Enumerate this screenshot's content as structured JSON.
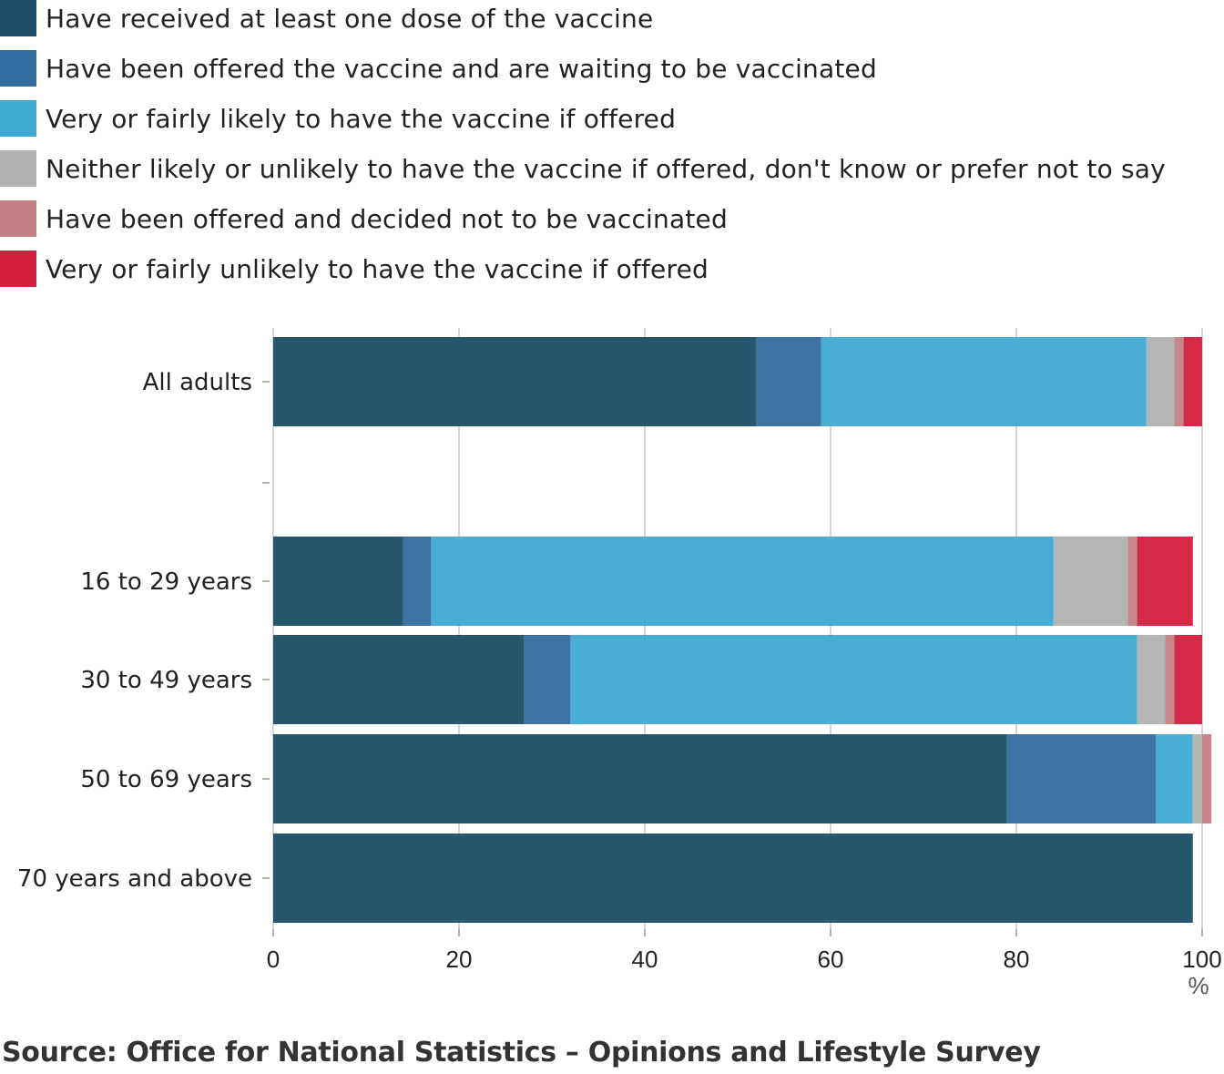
{
  "chart_data": {
    "type": "bar",
    "orientation": "horizontal",
    "stacked": true,
    "categories": [
      "All adults",
      "16 to 29 years",
      "30 to 49 years",
      "50 to 69 years",
      "70 years and above"
    ],
    "series": [
      {
        "name": "Have received at least one dose of the vaccine",
        "color": "#1b4e66",
        "values": [
          52,
          14,
          27,
          79,
          99
        ]
      },
      {
        "name": "Have been offered the vaccine and are waiting to be vaccinated",
        "color": "#346d9f",
        "values": [
          7,
          3,
          5,
          16,
          0
        ]
      },
      {
        "name": "Very or fairly likely to have the vaccine if offered",
        "color": "#40a9d2",
        "values": [
          35,
          67,
          61,
          4,
          0
        ]
      },
      {
        "name": "Neither likely or unlikely to have the vaccine if offered, don't know or prefer not to say",
        "color": "#b1b1b1",
        "values": [
          3,
          8,
          3,
          1,
          0
        ]
      },
      {
        "name": "Have been offered and decided not to be vaccinated",
        "color": "#c48086",
        "values": [
          1,
          1,
          1,
          1,
          0
        ]
      },
      {
        "name": "Very or fairly unlikely to have the vaccine if offered",
        "color": "#d21f3c",
        "values": [
          2,
          6,
          3,
          0,
          0
        ]
      }
    ],
    "xlim": [
      0,
      100
    ],
    "xticks": [
      "0",
      "20",
      "40",
      "60",
      "80",
      "100"
    ],
    "xlabel": "%",
    "grid": true,
    "legend": "top"
  },
  "source": "Source: Office for National Statistics – Opinions and Lifestyle Survey"
}
